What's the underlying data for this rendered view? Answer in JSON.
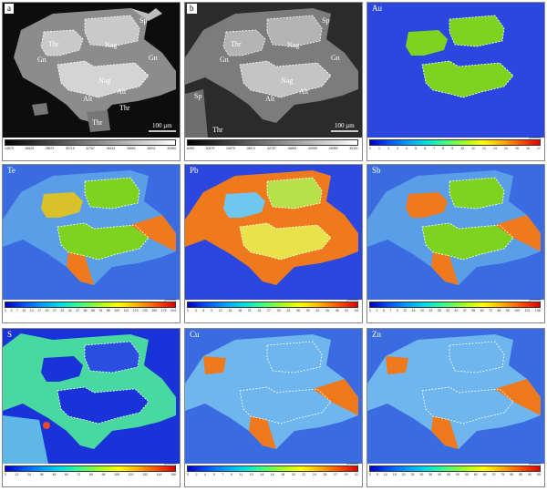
{
  "panels": [
    {
      "label": "a",
      "type": "bse",
      "labelStyle": "dark",
      "ticks": [
        "24573",
        "26623",
        "28671",
        "30719",
        "32767",
        "34815",
        "36863",
        "38911",
        "40959"
      ],
      "unit": "",
      "scale": "100 µm",
      "mineral_labels": [
        {
          "t": "Sp"
        },
        {
          "t": "Thr"
        },
        {
          "t": "Nag"
        },
        {
          "t": "Gn"
        },
        {
          "t": "Gn"
        },
        {
          "t": "Nag"
        },
        {
          "t": "Alt"
        },
        {
          "t": "Alt"
        },
        {
          "t": "Thr"
        },
        {
          "t": "Thr"
        }
      ]
    },
    {
      "label": "b",
      "type": "se",
      "labelStyle": "dark",
      "ticks": [
        "8283",
        "20479",
        "24575",
        "28671",
        "32767",
        "36863",
        "40959",
        "45055",
        "49151"
      ],
      "unit": "",
      "scale": "100 µm",
      "mineral_labels": [
        {
          "t": "Sp"
        },
        {
          "t": "Thr"
        },
        {
          "t": "Nag"
        },
        {
          "t": "Gn"
        },
        {
          "t": "Gn"
        },
        {
          "t": "Nag"
        },
        {
          "t": "Alt"
        },
        {
          "t": "Alt"
        },
        {
          "t": "Sp"
        },
        {
          "t": "Thr"
        }
      ]
    },
    {
      "label": "Au",
      "type": "au",
      "labelStyle": "light",
      "ticks": [
        "0",
        "1",
        "2",
        "3",
        "4",
        "5",
        "6",
        "7",
        "8",
        "9",
        "10",
        "11",
        "12",
        "13",
        "14",
        "15",
        "16",
        "17"
      ],
      "unit": "(counts)"
    },
    {
      "label": "Te",
      "type": "te",
      "labelStyle": "light",
      "ticks": [
        "0",
        "3",
        "7",
        "10",
        "13",
        "17",
        "20",
        "27",
        "33",
        "40",
        "47",
        "56",
        "66",
        "76",
        "88",
        "100",
        "112",
        "123",
        "133",
        "150",
        "175",
        "204"
      ],
      "unit": "(counts)"
    },
    {
      "label": "Pb",
      "type": "pb",
      "labelStyle": "light",
      "ticks": [
        "0",
        "3",
        "6",
        "9",
        "12",
        "15",
        "18",
        "21",
        "24",
        "27",
        "30",
        "33",
        "36",
        "39",
        "42",
        "45",
        "48",
        "51",
        "54"
      ],
      "unit": "(counts)"
    },
    {
      "label": "Sb",
      "type": "sb",
      "labelStyle": "light",
      "ticks": [
        "0",
        "2",
        "5",
        "7",
        "9",
        "12",
        "16",
        "19",
        "23",
        "28",
        "33",
        "40",
        "47",
        "55",
        "63",
        "72",
        "84",
        "96",
        "109",
        "121",
        "136"
      ],
      "unit": "(counts)"
    },
    {
      "label": "S",
      "type": "s",
      "labelStyle": "light",
      "ticks": [
        "0",
        "12",
        "24",
        "36",
        "48",
        "60",
        "72",
        "84",
        "96",
        "108",
        "120",
        "132",
        "144",
        "156"
      ],
      "unit": "(counts)"
    },
    {
      "label": "Cu",
      "type": "cu",
      "labelStyle": "light",
      "ticks": [
        "0",
        "2",
        "4",
        "5",
        "7",
        "9",
        "11",
        "13",
        "14",
        "16",
        "18",
        "20",
        "22",
        "24",
        "25",
        "27",
        "29",
        "31"
      ],
      "unit": "(counts)"
    },
    {
      "label": "Zn",
      "type": "zn",
      "labelStyle": "light",
      "ticks": [
        "0",
        "5",
        "10",
        "15",
        "20",
        "25",
        "30",
        "35",
        "40",
        "45",
        "50",
        "55",
        "60",
        "65",
        "70",
        "75",
        "80",
        "85",
        "90",
        "95"
      ],
      "unit": "(counts)"
    }
  ],
  "colors": {
    "bg_blue": "#1a33d9",
    "mid_blue": "#4f8fe6",
    "light_blue": "#7fc3f0",
    "green": "#7ed321",
    "yellowgreen": "#c6e03a",
    "yellow": "#e8e34a",
    "orange": "#ef7a1e",
    "cyan_green": "#47d9a0",
    "bse_black": "#0d0d0d",
    "bse_gray": "#8a8a8a",
    "bse_light": "#c8c8c8",
    "bse_white": "#e6e6e6"
  }
}
